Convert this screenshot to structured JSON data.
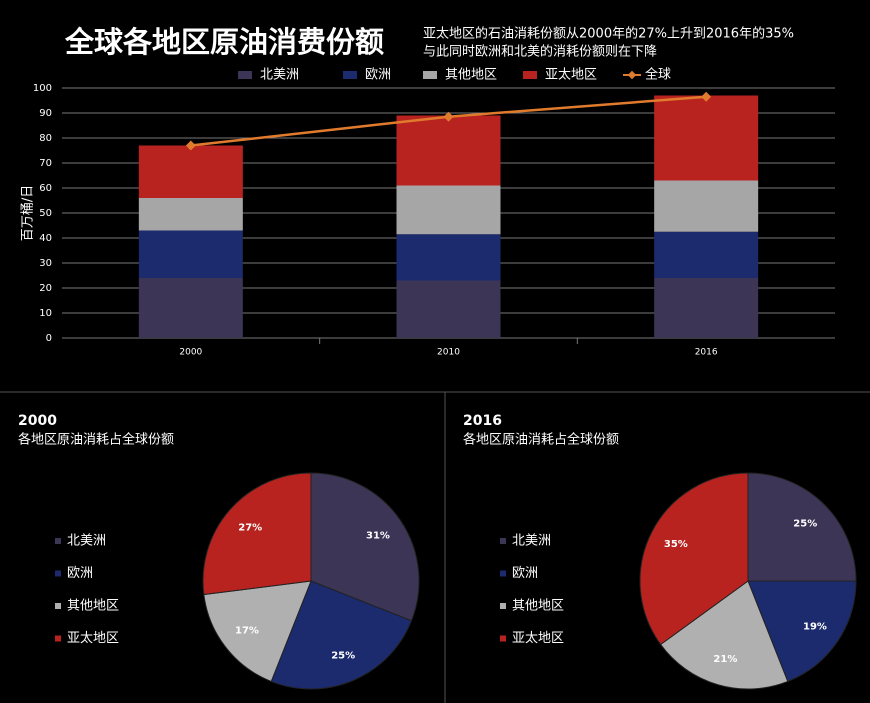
{
  "chart_data": [
    {
      "type": "bar",
      "stacked": true,
      "title": "全球各地区原油消费份额",
      "subtitle": [
        "亚太地区的石油消耗份额从2000年的27%上升到2016年的35%",
        "与此同时欧洲和北美的消耗份额则在下降"
      ],
      "y_label": "百万桶/日",
      "categories": [
        "2000",
        "2010",
        "2016"
      ],
      "series": [
        {
          "name": "北美洲",
          "color": "#3d3556",
          "values": [
            24,
            23,
            24
          ]
        },
        {
          "name": "欧洲",
          "color": "#1b2b6e",
          "values": [
            19,
            18.5,
            18.5
          ]
        },
        {
          "name": "其他地区",
          "color": "#a6a6a6",
          "values": [
            13,
            19.5,
            20.5
          ]
        },
        {
          "name": "亚太地区",
          "color": "#b8231f",
          "values": [
            21,
            28,
            34
          ]
        },
        {
          "name": "全球",
          "color": "#e07b2e",
          "type": "line",
          "values": [
            77,
            88.5,
            96.5
          ]
        }
      ],
      "ylim": [
        0,
        100
      ],
      "yticks": [
        0,
        10,
        20,
        30,
        40,
        50,
        60,
        70,
        80,
        90,
        100
      ],
      "grid": true,
      "legend": "top"
    },
    {
      "type": "pie",
      "title": "2000",
      "subtitle": "各地区原油消耗占全球份额",
      "categories": [
        "北美洲",
        "欧洲",
        "其他地区",
        "亚太地区"
      ],
      "colors": [
        "#3d3556",
        "#1b2b6e",
        "#b0b0b0",
        "#b8231f"
      ],
      "values": [
        31,
        25,
        17,
        27
      ],
      "value_labels": [
        "31%",
        "25%",
        "17%",
        "27%"
      ],
      "legend": "left"
    },
    {
      "type": "pie",
      "title": "2016",
      "subtitle": "各地区原油消耗占全球份额",
      "categories": [
        "北美洲",
        "欧洲",
        "其他地区",
        "亚太地区"
      ],
      "colors": [
        "#3d3556",
        "#1b2b6e",
        "#b0b0b0",
        "#b8231f"
      ],
      "values": [
        25,
        19,
        21,
        35
      ],
      "value_labels": [
        "25%",
        "19%",
        "21%",
        "35%"
      ],
      "legend": "left"
    }
  ]
}
